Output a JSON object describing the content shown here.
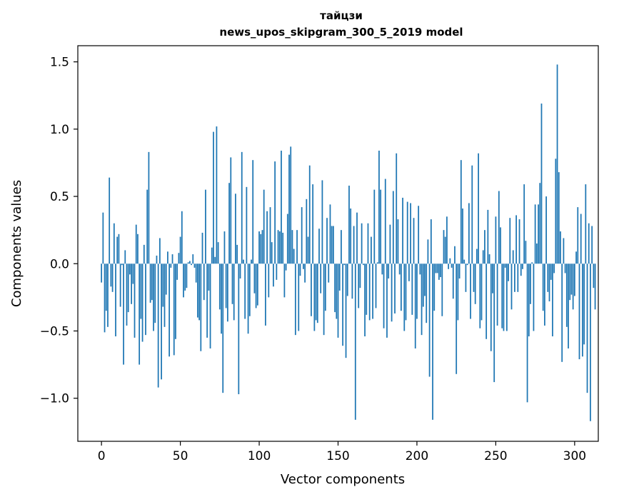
{
  "chart_data": {
    "type": "bar",
    "title_line1": "тайцзи",
    "title_line2": "news_upos_skipgram_300_5_2019 model",
    "xlabel": "Vector components",
    "ylabel": "Components values",
    "xlim": [
      -15,
      315
    ],
    "ylim": [
      -1.32,
      1.62
    ],
    "x_ticks": [
      0,
      50,
      100,
      150,
      200,
      250,
      300
    ],
    "x_tick_labels": [
      "0",
      "50",
      "100",
      "150",
      "200",
      "250",
      "300"
    ],
    "y_ticks": [
      -1.0,
      -0.5,
      0.0,
      0.5,
      1.0,
      1.5
    ],
    "y_tick_labels": [
      "−1.0",
      "−0.5",
      "0.0",
      "0.5",
      "1.0",
      "1.5"
    ],
    "grid": false,
    "bar_color": "#1f77b4",
    "values": [
      -0.14,
      0.38,
      -0.51,
      -0.35,
      -0.47,
      0.64,
      -0.17,
      -0.21,
      0.3,
      -0.54,
      0.2,
      0.22,
      -0.32,
      -0.01,
      -0.75,
      0.1,
      -0.46,
      -0.36,
      -0.08,
      -0.3,
      -0.15,
      -0.55,
      0.29,
      0.22,
      -0.75,
      -0.41,
      -0.58,
      0.14,
      -0.53,
      0.55,
      0.83,
      -0.29,
      -0.27,
      -0.5,
      -0.44,
      0.06,
      -0.92,
      0.19,
      -0.86,
      -0.32,
      -0.47,
      -0.23,
      0.09,
      -0.69,
      -0.03,
      0.07,
      -0.68,
      -0.56,
      -0.12,
      0.08,
      0.2,
      0.39,
      -0.25,
      -0.2,
      -0.18,
      0.01,
      0.02,
      -0.01,
      0.07,
      -0.03,
      -0.14,
      -0.4,
      -0.42,
      -0.65,
      0.23,
      -0.27,
      0.55,
      -0.55,
      -0.2,
      -0.63,
      0.12,
      0.98,
      0.05,
      1.02,
      0.16,
      -0.34,
      -0.52,
      -0.96,
      0.24,
      -0.33,
      -0.43,
      0.6,
      0.79,
      -0.3,
      -0.42,
      0.52,
      0.14,
      -0.97,
      -0.11,
      0.83,
      0.03,
      -0.41,
      0.57,
      -0.52,
      -0.39,
      0.03,
      0.77,
      -0.22,
      -0.33,
      -0.31,
      0.24,
      0.22,
      0.25,
      0.55,
      -0.46,
      0.39,
      -0.25,
      0.42,
      0.16,
      -0.17,
      0.76,
      -0.12,
      0.25,
      0.24,
      0.84,
      0.23,
      -0.25,
      -0.05,
      0.37,
      0.81,
      0.87,
      0.25,
      0.11,
      -0.53,
      0.25,
      -0.5,
      -0.09,
      0.42,
      -0.04,
      -0.14,
      0.48,
      0.2,
      0.73,
      -0.39,
      0.59,
      -0.5,
      -0.42,
      -0.44,
      0.26,
      -0.22,
      0.62,
      -0.53,
      -0.35,
      0.34,
      -0.14,
      0.44,
      0.28,
      0.28,
      -0.36,
      -0.41,
      -0.55,
      -0.2,
      0.25,
      -0.61,
      -0.01,
      -0.7,
      -0.24,
      0.58,
      0.41,
      -0.26,
      0.28,
      -1.16,
      0.38,
      -0.33,
      -0.18,
      0.3,
      -0.01,
      -0.54,
      -0.38,
      0.3,
      -0.42,
      0.2,
      -0.41,
      0.55,
      -0.33,
      0.01,
      0.84,
      0.55,
      -0.08,
      -0.48,
      0.63,
      -0.55,
      -0.11,
      0.29,
      -0.43,
      0.54,
      -0.37,
      0.82,
      0.33,
      -0.08,
      -0.35,
      0.49,
      -0.5,
      -0.42,
      0.46,
      -0.13,
      0.45,
      -0.38,
      0.34,
      -0.63,
      -0.41,
      0.43,
      -0.08,
      -0.53,
      -0.32,
      -0.24,
      -0.44,
      0.18,
      -0.84,
      0.33,
      -1.16,
      -0.35,
      -0.07,
      -0.07,
      -0.12,
      -0.1,
      -0.39,
      0.25,
      0.2,
      0.35,
      -0.04,
      0.04,
      -0.03,
      -0.26,
      0.13,
      -0.82,
      -0.42,
      -0.11,
      0.77,
      0.41,
      0.03,
      -0.21,
      -0.01,
      0.45,
      -0.41,
      0.73,
      -0.21,
      -0.3,
      0.11,
      0.82,
      -0.48,
      -0.42,
      0.1,
      0.25,
      -0.56,
      0.4,
      0.07,
      -0.65,
      -0.22,
      -0.88,
      0.35,
      -0.46,
      0.54,
      0.27,
      -0.48,
      -0.5,
      -0.03,
      -0.5,
      -0.13,
      0.34,
      -0.34,
      0.1,
      -0.21,
      0.36,
      -0.21,
      0.33,
      -0.09,
      -0.04,
      0.59,
      0.17,
      -1.03,
      -0.54,
      -0.3,
      0.01,
      -0.5,
      0.44,
      0.15,
      0.44,
      0.6,
      1.19,
      -0.35,
      -0.46,
      0.5,
      -0.21,
      -0.28,
      -0.12,
      -0.54,
      -0.07,
      0.78,
      1.48,
      0.68,
      0.24,
      -0.73,
      0.19,
      -0.07,
      -0.47,
      -0.63,
      -0.27,
      -0.23,
      -0.34,
      -0.24,
      0.09,
      0.42,
      -0.71,
      0.37,
      -0.69,
      -0.6,
      0.59,
      -0.96,
      0.3,
      -1.17,
      0.28,
      -0.18,
      -0.34
    ]
  }
}
